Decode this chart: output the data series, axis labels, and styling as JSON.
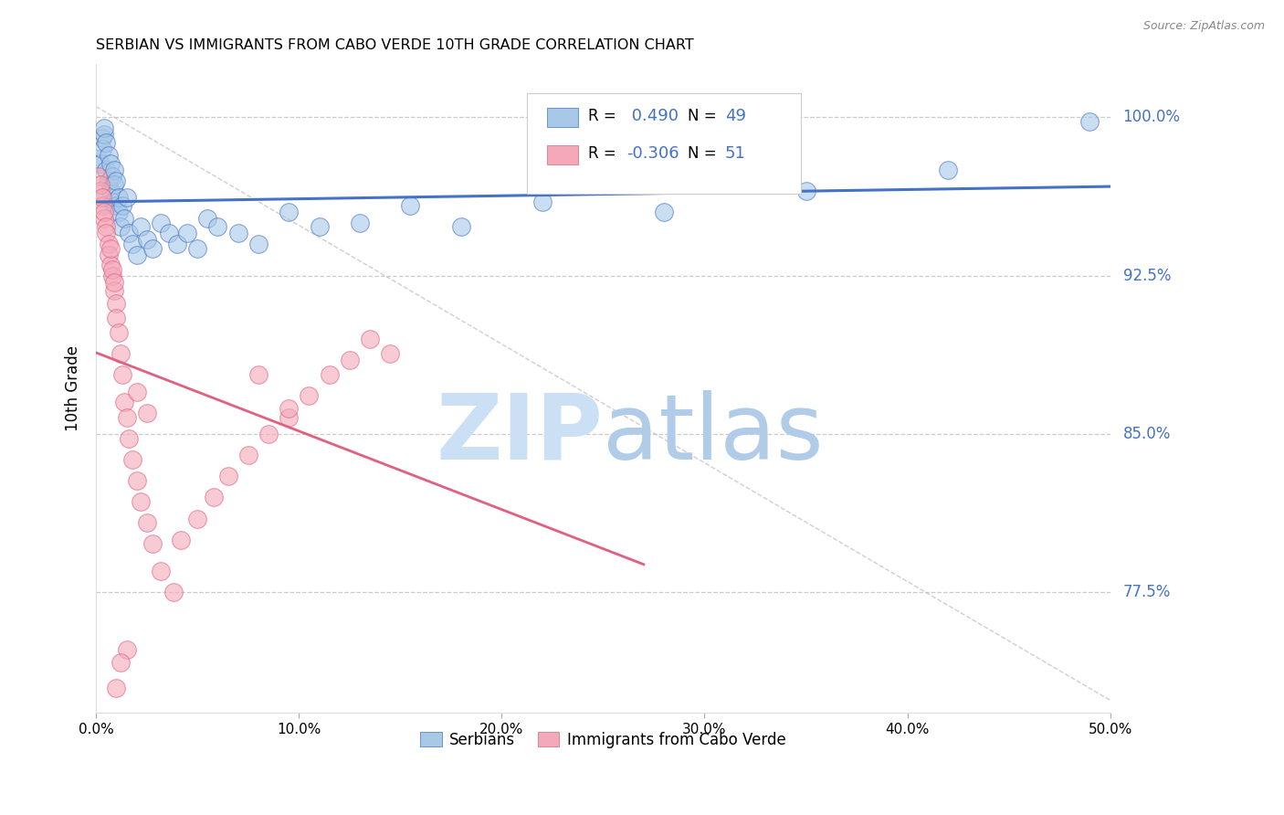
{
  "title": "SERBIAN VS IMMIGRANTS FROM CABO VERDE 10TH GRADE CORRELATION CHART",
  "source": "Source: ZipAtlas.com",
  "ylabel": "10th Grade",
  "ytick_labels": [
    "100.0%",
    "92.5%",
    "85.0%",
    "77.5%"
  ],
  "ytick_values": [
    1.0,
    0.925,
    0.85,
    0.775
  ],
  "legend_blue_r": "R = ",
  "legend_blue_r_val": " 0.490",
  "legend_blue_n": "  N = 49",
  "legend_pink_r": "R = ",
  "legend_pink_r_val": "-0.306",
  "legend_pink_n": "  N = 51",
  "blue_color": "#a8c8e8",
  "pink_color": "#f4a8b8",
  "blue_line_color": "#4472c4",
  "pink_line_color": "#e06080",
  "xmin": 0.0,
  "xmax": 0.5,
  "ymin": 0.718,
  "ymax": 1.025,
  "blue_scatter_x": [
    0.001,
    0.002,
    0.003,
    0.003,
    0.004,
    0.004,
    0.005,
    0.005,
    0.006,
    0.006,
    0.007,
    0.007,
    0.008,
    0.008,
    0.009,
    0.009,
    0.01,
    0.01,
    0.011,
    0.011,
    0.012,
    0.013,
    0.014,
    0.015,
    0.016,
    0.018,
    0.02,
    0.022,
    0.025,
    0.028,
    0.032,
    0.036,
    0.04,
    0.045,
    0.05,
    0.055,
    0.06,
    0.07,
    0.08,
    0.095,
    0.11,
    0.13,
    0.155,
    0.18,
    0.22,
    0.28,
    0.35,
    0.42,
    0.49
  ],
  "blue_scatter_y": [
    0.98,
    0.978,
    0.99,
    0.985,
    0.992,
    0.995,
    0.975,
    0.988,
    0.97,
    0.982,
    0.965,
    0.978,
    0.96,
    0.972,
    0.975,
    0.968,
    0.958,
    0.97,
    0.955,
    0.962,
    0.948,
    0.958,
    0.952,
    0.962,
    0.945,
    0.94,
    0.935,
    0.948,
    0.942,
    0.938,
    0.95,
    0.945,
    0.94,
    0.945,
    0.938,
    0.952,
    0.948,
    0.945,
    0.94,
    0.955,
    0.948,
    0.95,
    0.958,
    0.948,
    0.96,
    0.955,
    0.965,
    0.975,
    0.998
  ],
  "pink_scatter_x": [
    0.001,
    0.002,
    0.002,
    0.003,
    0.003,
    0.004,
    0.004,
    0.005,
    0.005,
    0.006,
    0.006,
    0.007,
    0.007,
    0.008,
    0.008,
    0.009,
    0.009,
    0.01,
    0.01,
    0.011,
    0.012,
    0.013,
    0.014,
    0.015,
    0.016,
    0.018,
    0.02,
    0.022,
    0.025,
    0.028,
    0.032,
    0.038,
    0.042,
    0.05,
    0.058,
    0.065,
    0.075,
    0.085,
    0.095,
    0.105,
    0.115,
    0.125,
    0.135,
    0.145,
    0.08,
    0.095,
    0.02,
    0.025,
    0.015,
    0.01,
    0.012
  ],
  "pink_scatter_y": [
    0.972,
    0.965,
    0.968,
    0.958,
    0.962,
    0.952,
    0.955,
    0.948,
    0.945,
    0.94,
    0.935,
    0.93,
    0.938,
    0.925,
    0.928,
    0.918,
    0.922,
    0.912,
    0.905,
    0.898,
    0.888,
    0.878,
    0.865,
    0.858,
    0.848,
    0.838,
    0.828,
    0.818,
    0.808,
    0.798,
    0.785,
    0.775,
    0.8,
    0.81,
    0.82,
    0.83,
    0.84,
    0.85,
    0.858,
    0.868,
    0.878,
    0.885,
    0.895,
    0.888,
    0.878,
    0.862,
    0.87,
    0.86,
    0.748,
    0.73,
    0.742
  ]
}
